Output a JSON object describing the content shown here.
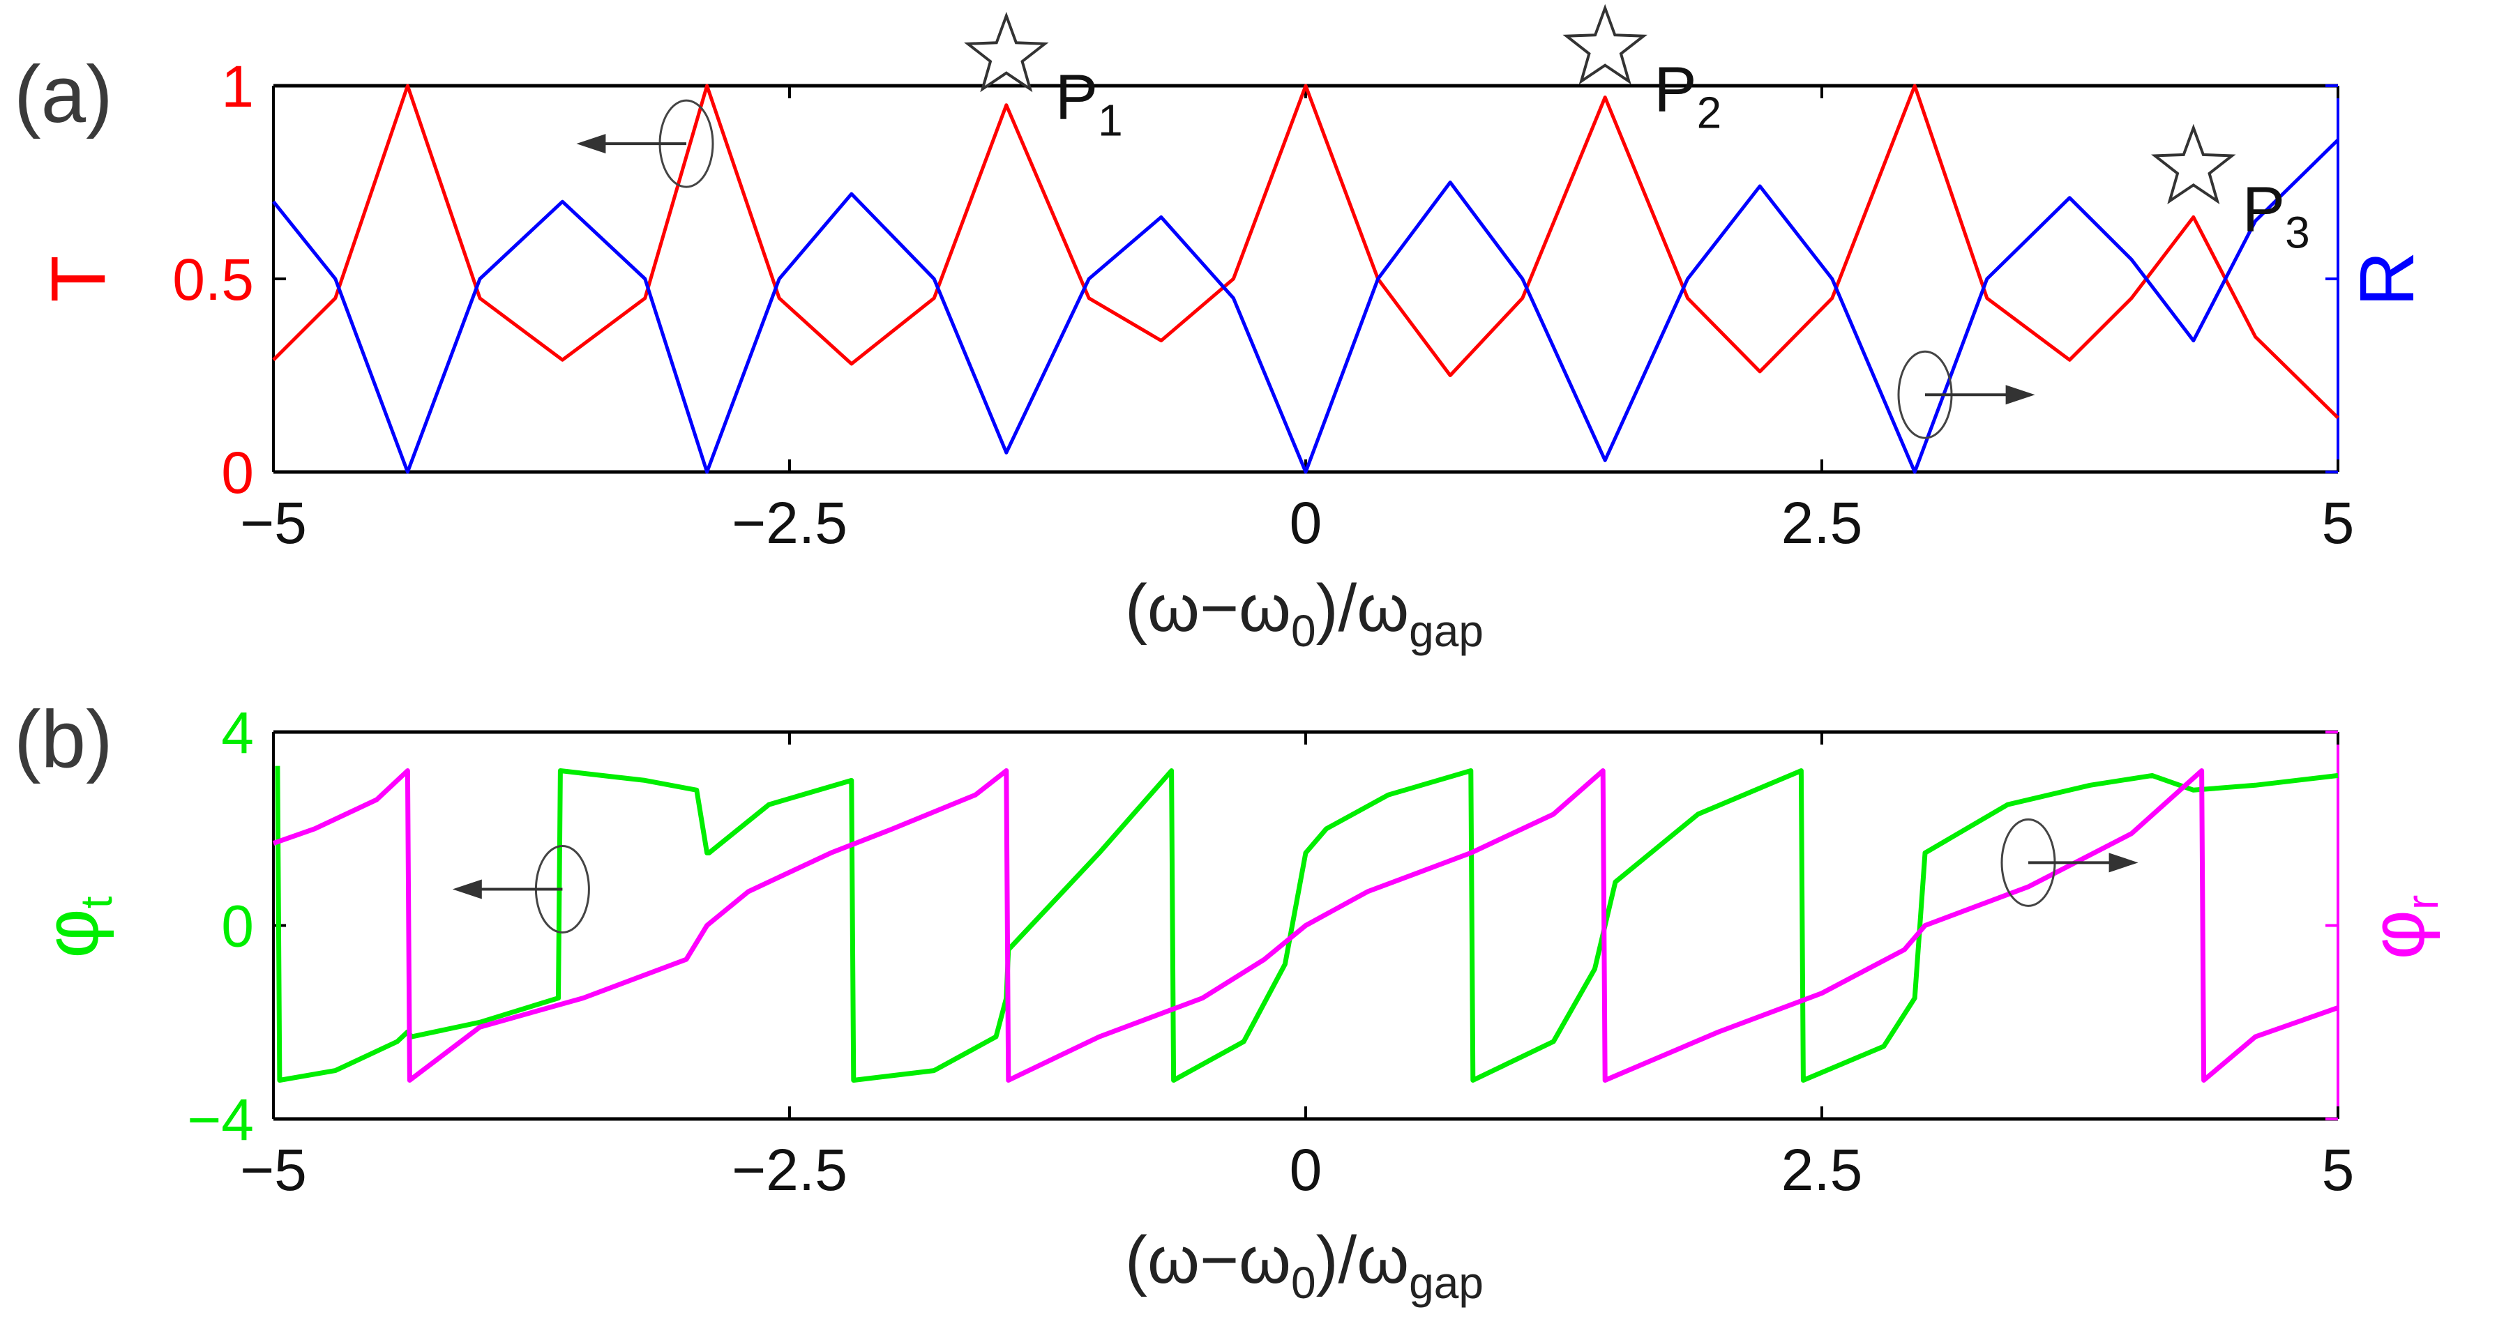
{
  "chart_data": [
    {
      "panel": "(a)",
      "type": "line",
      "xlabel": {
        "open": "(ω−ω",
        "sub1": "0",
        "mid": ")/ω",
        "sub2": "gap"
      },
      "xlim": [
        -5,
        5
      ],
      "xticks": [
        -5,
        -2.5,
        0,
        2.5,
        5
      ],
      "xtick_labels": [
        "−5",
        "−2.5",
        "0",
        "2.5",
        "5"
      ],
      "ylabel_left": "T",
      "ylabel_right": "R",
      "ylim": [
        0,
        1
      ],
      "yticks": [
        0,
        0.5,
        1
      ],
      "ytick_labels": [
        "0",
        "0.5",
        "1"
      ],
      "series": [
        {
          "name": "T",
          "axis": "left",
          "color": "#ff0000",
          "x": [
            -5,
            -4.7,
            -4.35,
            -4.0,
            -3.6,
            -3.2,
            -2.9,
            -2.55,
            -2.2,
            -1.8,
            -1.45,
            -1.05,
            -0.7,
            -0.35,
            0,
            0.35,
            0.7,
            1.05,
            1.45,
            1.85,
            2.2,
            2.55,
            2.95,
            3.3,
            3.7,
            4.0,
            4.3,
            4.6,
            5
          ],
          "y": [
            0.29,
            0.45,
            1.0,
            0.45,
            0.29,
            0.45,
            1.0,
            0.45,
            0.28,
            0.45,
            0.95,
            0.45,
            0.34,
            0.5,
            1.0,
            0.5,
            0.25,
            0.45,
            0.97,
            0.45,
            0.26,
            0.45,
            1.0,
            0.45,
            0.29,
            0.45,
            0.66,
            0.35,
            0.14
          ]
        },
        {
          "name": "R",
          "axis": "right",
          "color": "#0000ff",
          "x": [
            -5,
            -4.7,
            -4.35,
            -4.0,
            -3.6,
            -3.2,
            -2.9,
            -2.55,
            -2.2,
            -1.8,
            -1.45,
            -1.05,
            -0.7,
            -0.35,
            0,
            0.35,
            0.7,
            1.05,
            1.45,
            1.85,
            2.2,
            2.55,
            2.95,
            3.3,
            3.7,
            4.0,
            4.3,
            4.6,
            5
          ],
          "y": [
            0.7,
            0.5,
            0.0,
            0.5,
            0.7,
            0.5,
            0.0,
            0.5,
            0.72,
            0.5,
            0.05,
            0.5,
            0.66,
            0.45,
            0.0,
            0.5,
            0.75,
            0.5,
            0.03,
            0.5,
            0.74,
            0.5,
            0.0,
            0.5,
            0.71,
            0.55,
            0.34,
            0.65,
            0.86
          ]
        }
      ],
      "annotations": [
        {
          "label": "P",
          "sub": "1",
          "x": -1.45,
          "y": 0.95,
          "marker": "star"
        },
        {
          "label": "P",
          "sub": "2",
          "x": 1.45,
          "y": 0.97,
          "marker": "star"
        },
        {
          "label": "P",
          "sub": "3",
          "x": 4.3,
          "y": 0.66,
          "marker": "star"
        }
      ],
      "axis_arrows": [
        {
          "x": -3.0,
          "y": 0.85,
          "points": "left"
        },
        {
          "x": 3.0,
          "y": 0.2,
          "points": "right"
        }
      ]
    },
    {
      "panel": "(b)",
      "type": "line",
      "xlabel": {
        "open": "(ω−ω",
        "sub1": "0",
        "mid": ")/ω",
        "sub2": "gap"
      },
      "xlim": [
        -5,
        5
      ],
      "xticks": [
        -5,
        -2.5,
        0,
        2.5,
        5
      ],
      "xtick_labels": [
        "−5",
        "−2.5",
        "0",
        "2.5",
        "5"
      ],
      "ylabel_left": {
        "main": "φ",
        "sub": "t"
      },
      "ylabel_right": {
        "main": "φ",
        "sub": "r"
      },
      "ylim": [
        -4,
        4
      ],
      "yticks": [
        -4,
        0,
        4
      ],
      "ytick_labels": [
        "−4",
        "0",
        "4"
      ],
      "series": [
        {
          "name": "φt",
          "axis": "left",
          "color": "#00ee00",
          "x": [
            -4.98,
            -4.97,
            -4.7,
            -4.4,
            -4.35,
            -4.33,
            -4.0,
            -3.62,
            -3.61,
            -3.2,
            -2.95,
            -2.9,
            -2.89,
            -2.6,
            -2.2,
            -2.19,
            -1.8,
            -1.5,
            -1.45,
            -1.44,
            -1.0,
            -0.65,
            -0.64,
            -0.3,
            -0.1,
            0,
            0.1,
            0.4,
            0.8,
            0.81,
            1.2,
            1.4,
            1.45,
            1.5,
            1.9,
            2.4,
            2.41,
            2.8,
            2.95,
            3.0,
            3.4,
            3.8,
            4.1,
            4.3,
            4.6,
            5
          ],
          "y": [
            3.3,
            -3.2,
            -3.0,
            -2.4,
            -2.2,
            -2.3,
            -2.0,
            -1.5,
            3.2,
            3.0,
            2.8,
            1.5,
            1.5,
            2.5,
            3.0,
            -3.2,
            -3.0,
            -2.3,
            -1.5,
            -0.5,
            1.5,
            3.2,
            -3.2,
            -2.4,
            -0.8,
            1.5,
            2.0,
            2.7,
            3.2,
            -3.2,
            -2.4,
            -0.9,
            0.0,
            0.9,
            2.3,
            3.2,
            -3.2,
            -2.5,
            -1.5,
            1.5,
            2.5,
            2.9,
            3.1,
            2.8,
            2.9,
            3.1
          ]
        },
        {
          "name": "φr",
          "axis": "right",
          "color": "#ff00ff",
          "x": [
            -5,
            -4.8,
            -4.5,
            -4.35,
            -4.34,
            -4.0,
            -3.5,
            -3.0,
            -2.9,
            -2.7,
            -2.3,
            -2.0,
            -1.6,
            -1.45,
            -1.44,
            -1.0,
            -0.5,
            -0.2,
            0,
            0.3,
            0.8,
            1.2,
            1.44,
            1.45,
            2.0,
            2.5,
            2.9,
            3.0,
            3.5,
            4.0,
            4.34,
            4.35,
            4.6,
            5
          ],
          "y": [
            1.7,
            2.0,
            2.6,
            3.2,
            -3.2,
            -2.1,
            -1.5,
            -0.7,
            0.0,
            0.7,
            1.5,
            2.0,
            2.7,
            3.2,
            -3.2,
            -2.3,
            -1.5,
            -0.7,
            0.0,
            0.7,
            1.5,
            2.3,
            3.2,
            -3.2,
            -2.2,
            -1.4,
            -0.5,
            0.0,
            0.8,
            1.9,
            3.2,
            -3.2,
            -2.3,
            -1.7
          ]
        }
      ],
      "axis_arrows": [
        {
          "x": -3.6,
          "y": 0.75,
          "points": "left"
        },
        {
          "x": 3.5,
          "y": 1.3,
          "points": "right"
        }
      ]
    }
  ]
}
